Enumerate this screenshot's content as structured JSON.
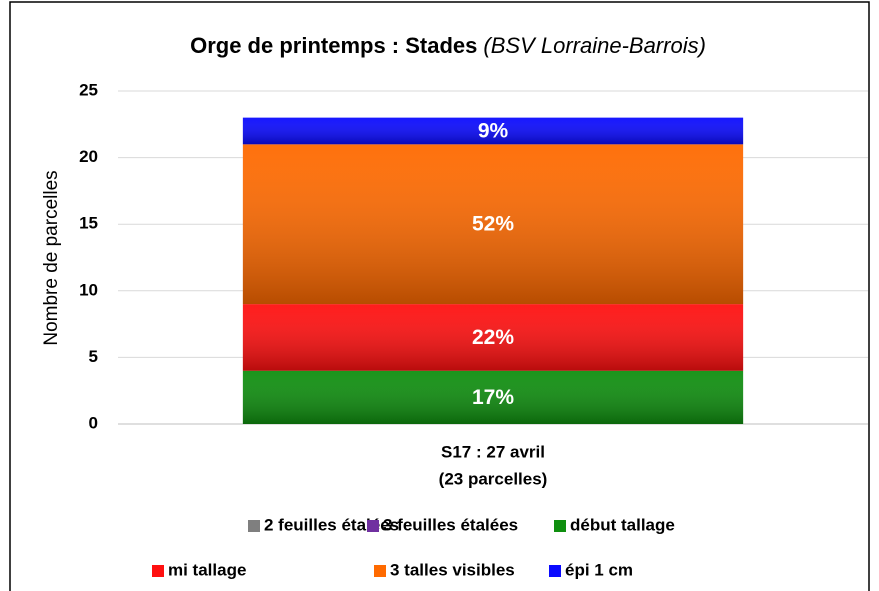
{
  "chart_data": {
    "type": "stacked_bar",
    "title": "Orge de printemps : Stades",
    "title_note": "(BSV Lorraine-Barrois)",
    "y_label": "Nombre de parcelles",
    "categories": [
      "S17 : 27 avril"
    ],
    "category_notes": [
      "(23 parcelles)"
    ],
    "series": [
      {
        "name": "2 feuilles étalées",
        "color": "#7f7f7f",
        "values": [
          0
        ]
      },
      {
        "name": "3 feuilles étalées",
        "color": "#7030a0",
        "values": [
          0
        ]
      },
      {
        "name": "début tallage",
        "color": "#0f8f0f",
        "values": [
          4
        ],
        "value_labels": [
          "17%"
        ]
      },
      {
        "name": "mi tallage",
        "color": "#ff1010",
        "values": [
          5
        ],
        "value_labels": [
          "22%"
        ]
      },
      {
        "name": "3 talles visibles",
        "color": "#ff6a00",
        "values": [
          12
        ],
        "value_labels": [
          "52%"
        ]
      },
      {
        "name": "épi 1 cm",
        "color": "#0a0aff",
        "values": [
          2
        ],
        "value_labels": [
          "9%"
        ]
      }
    ],
    "ylim": [
      0,
      25
    ],
    "yticks": [
      0,
      5,
      10,
      15,
      20,
      25
    ],
    "grid": true
  }
}
